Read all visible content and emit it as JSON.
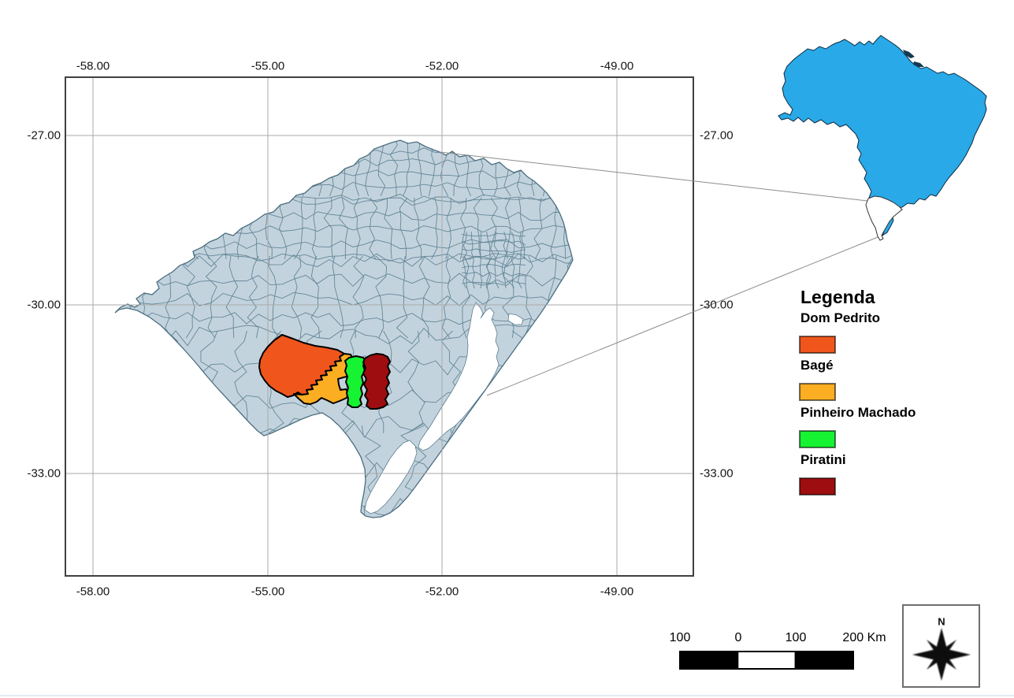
{
  "map": {
    "axes": {
      "top": [
        "-58.00",
        "-55.00",
        "-52.00",
        "-49.00"
      ],
      "bottom": [
        "-58.00",
        "-55.00",
        "-52.00",
        "-49.00"
      ],
      "left": [
        "-27.00",
        "-30.00",
        "-33.00"
      ],
      "right": [
        "-27.00",
        "-30.00",
        "-33.00"
      ]
    },
    "colors": {
      "municipality_fill": "#c3d3dd",
      "municipality_border": "#5a7f90",
      "state_outline": "#4a6e80",
      "gridline": "#a9a9a9",
      "frame": "#404040",
      "leader_line": "#8c8c8c",
      "water": "#ffffff"
    }
  },
  "legend": {
    "title": "Legenda",
    "items": [
      {
        "label": "Dom Pedrito",
        "color": "#f0561c"
      },
      {
        "label": "Bagé",
        "color": "#fbae22"
      },
      {
        "label": "Pinheiro Machado",
        "color": "#15f332"
      },
      {
        "label": "Piratini",
        "color": "#9e0e10"
      }
    ]
  },
  "scalebar": {
    "labels": [
      "100",
      "0",
      "100",
      "200 Km"
    ],
    "bar_color": "#000000"
  },
  "compass": {
    "label": "N"
  },
  "inset": {
    "country_fill": "#29a9e8",
    "highlight_fill": "#ffffff"
  }
}
